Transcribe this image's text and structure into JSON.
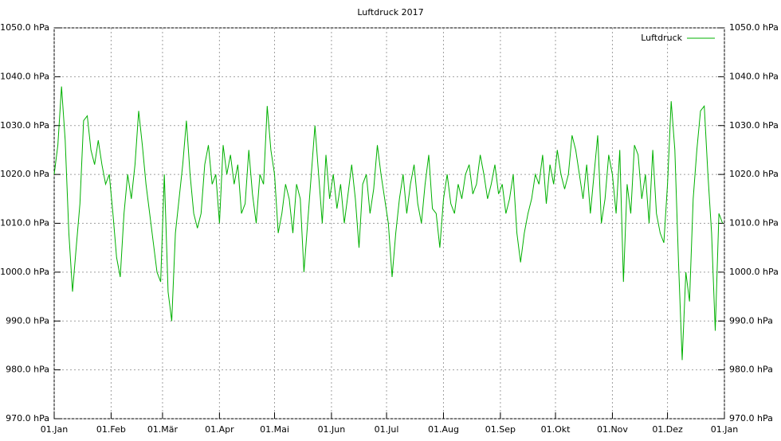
{
  "chart_data": {
    "type": "line",
    "title": "Luftdruck 2017",
    "xlim": [
      0,
      365
    ],
    "xticks": [
      {
        "value": 0,
        "label": "01.Jan"
      },
      {
        "value": 31,
        "label": "01.Feb"
      },
      {
        "value": 59,
        "label": "01.Mär"
      },
      {
        "value": 90,
        "label": "01.Apr"
      },
      {
        "value": 120,
        "label": "01.Mai"
      },
      {
        "value": 151,
        "label": "01.Jun"
      },
      {
        "value": 181,
        "label": "01.Jul"
      },
      {
        "value": 212,
        "label": "01.Aug"
      },
      {
        "value": 243,
        "label": "01.Sep"
      },
      {
        "value": 273,
        "label": "01.Okt"
      },
      {
        "value": 304,
        "label": "01.Nov"
      },
      {
        "value": 334,
        "label": "01.Dez"
      },
      {
        "value": 365,
        "label": "01.Jan"
      }
    ],
    "ylim": [
      970,
      1050
    ],
    "yticks": [
      {
        "value": 970,
        "label": "970.0 hPa"
      },
      {
        "value": 980,
        "label": "980.0 hPa"
      },
      {
        "value": 990,
        "label": "990.0 hPa"
      },
      {
        "value": 1000,
        "label": "1000.0 hPa"
      },
      {
        "value": 1010,
        "label": "1010.0 hPa"
      },
      {
        "value": 1020,
        "label": "1020.0 hPa"
      },
      {
        "value": 1030,
        "label": "1030.0 hPa"
      },
      {
        "value": 1040,
        "label": "1040.0 hPa"
      },
      {
        "value": 1050,
        "label": "1050.0 hPa"
      }
    ],
    "grid": true,
    "legend": "top-right",
    "x": [
      0,
      2,
      4,
      6,
      8,
      10,
      12,
      14,
      16,
      18,
      20,
      22,
      24,
      26,
      28,
      30,
      32,
      34,
      36,
      38,
      40,
      42,
      44,
      46,
      48,
      50,
      52,
      54,
      56,
      58,
      60,
      62,
      64,
      66,
      68,
      70,
      72,
      74,
      76,
      78,
      80,
      82,
      84,
      86,
      88,
      90,
      92,
      94,
      96,
      98,
      100,
      102,
      104,
      106,
      108,
      110,
      112,
      114,
      116,
      118,
      120,
      122,
      124,
      126,
      128,
      130,
      132,
      134,
      136,
      138,
      140,
      142,
      144,
      146,
      148,
      150,
      152,
      154,
      156,
      158,
      160,
      162,
      164,
      166,
      168,
      170,
      172,
      174,
      176,
      178,
      180,
      182,
      184,
      186,
      188,
      190,
      192,
      194,
      196,
      198,
      200,
      202,
      204,
      206,
      208,
      210,
      212,
      214,
      216,
      218,
      220,
      222,
      224,
      226,
      228,
      230,
      232,
      234,
      236,
      238,
      240,
      242,
      244,
      246,
      248,
      250,
      252,
      254,
      256,
      258,
      260,
      262,
      264,
      266,
      268,
      270,
      272,
      274,
      276,
      278,
      280,
      282,
      284,
      286,
      288,
      290,
      292,
      294,
      296,
      298,
      300,
      302,
      304,
      306,
      308,
      310,
      312,
      314,
      316,
      318,
      320,
      322,
      324,
      326,
      328,
      330,
      332,
      334,
      336,
      338,
      340,
      342,
      344,
      346,
      348,
      350,
      352,
      354,
      356,
      358,
      360,
      362,
      364
    ],
    "series": [
      {
        "name": "Luftdruck",
        "color": "#00b000",
        "values": [
          1020,
          1026,
          1038,
          1027,
          1008,
          996,
          1005,
          1014,
          1031,
          1032,
          1025,
          1022,
          1027,
          1022,
          1018,
          1020,
          1012,
          1003,
          999,
          1012,
          1020,
          1015,
          1022,
          1033,
          1026,
          1018,
          1012,
          1006,
          1000,
          998,
          1020,
          996,
          990,
          1008,
          1015,
          1022,
          1031,
          1020,
          1012,
          1009,
          1012,
          1022,
          1026,
          1018,
          1020,
          1010,
          1026,
          1020,
          1024,
          1018,
          1022,
          1012,
          1014,
          1025,
          1016,
          1010,
          1020,
          1018,
          1034,
          1025,
          1020,
          1008,
          1012,
          1018,
          1015,
          1008,
          1018,
          1015,
          1000,
          1010,
          1020,
          1030,
          1020,
          1010,
          1024,
          1015,
          1020,
          1013,
          1018,
          1010,
          1016,
          1022,
          1015,
          1005,
          1018,
          1020,
          1012,
          1017,
          1026,
          1020,
          1015,
          1010,
          999,
          1008,
          1015,
          1020,
          1012,
          1018,
          1022,
          1014,
          1010,
          1018,
          1024,
          1013,
          1012,
          1005,
          1015,
          1020,
          1014,
          1012,
          1018,
          1015,
          1020,
          1022,
          1016,
          1018,
          1024,
          1020,
          1015,
          1018,
          1022,
          1016,
          1018,
          1012,
          1015,
          1020,
          1008,
          1002,
          1008,
          1012,
          1015,
          1020,
          1018,
          1024,
          1014,
          1022,
          1018,
          1025,
          1020,
          1017,
          1020,
          1028,
          1025,
          1020,
          1015,
          1022,
          1012,
          1020,
          1028,
          1010,
          1015,
          1024,
          1020,
          1012,
          1025,
          998,
          1018,
          1012,
          1026,
          1024,
          1015,
          1020,
          1010,
          1025,
          1012,
          1008,
          1006,
          1018,
          1035,
          1025,
          1002,
          982,
          1000,
          994,
          1015,
          1025,
          1033,
          1034,
          1020,
          1008,
          988,
          1012,
          1010
        ]
      }
    ]
  }
}
